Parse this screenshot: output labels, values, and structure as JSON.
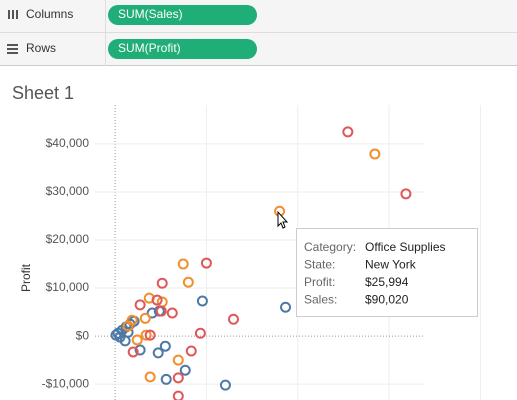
{
  "shelves": {
    "columns": {
      "label": "Columns",
      "pill": "SUM(Sales)"
    },
    "rows": {
      "label": "Rows",
      "pill": "SUM(Profit)"
    }
  },
  "chart_data": {
    "type": "scatter",
    "title": "Sheet 1",
    "y_label": "Profit",
    "xlim": [
      -11000,
      220000
    ],
    "xticks": [
      0,
      50000,
      100000,
      150000,
      200000
    ],
    "ylim": [
      -13300,
      48100
    ],
    "yticks": [
      {
        "value": -10000,
        "label": "-$10,000"
      },
      {
        "value": 0,
        "label": "$0"
      },
      {
        "value": 10000,
        "label": "$10,000"
      },
      {
        "value": 20000,
        "label": "$20,000"
      },
      {
        "value": 30000,
        "label": "$30,000"
      },
      {
        "value": 40000,
        "label": "$40,000"
      }
    ],
    "grid": true,
    "series": [
      {
        "color": "#4e79a7",
        "x": [
          47800,
          93300,
          24200,
          20300,
          27500,
          23600,
          13700,
          38400,
          28000,
          60400,
          5500,
          500,
          1600,
          3800,
          6000,
          8200,
          10400,
          2700,
          7100
        ],
        "values": [
          7300,
          6000,
          5200,
          4800,
          -2100,
          -3500,
          -2900,
          -7100,
          -9000,
          -10200,
          -1000,
          200,
          600,
          1200,
          1900,
          2500,
          3100,
          -200,
          800
        ]
      },
      {
        "color": "#f28e2b",
        "x": [
          142200,
          90020,
          37300,
          40100,
          18700,
          25800,
          16500,
          9300,
          7100,
          12100,
          34600,
          19200,
          17000
        ],
        "values": [
          37900,
          25994,
          15000,
          11200,
          7900,
          7100,
          3700,
          3300,
          2100,
          -800,
          -5000,
          -8500,
          200
        ]
      },
      {
        "color": "#e15759",
        "x": [
          127400,
          159200,
          50000,
          64800,
          46700,
          41700,
          34600,
          25300,
          23000,
          25800,
          31300,
          13700,
          19200,
          9900,
          34600
        ],
        "values": [
          42500,
          29600,
          15200,
          3500,
          600,
          -3100,
          -8700,
          5200,
          7500,
          11000,
          4800,
          6500,
          200,
          -3300,
          -12500
        ]
      }
    ]
  },
  "tooltip": {
    "rows": [
      [
        "Category:",
        "Office Supplies"
      ],
      [
        "State:",
        "New York"
      ],
      [
        "Profit:",
        "$25,994"
      ],
      [
        "Sales:",
        "$90,020"
      ]
    ]
  }
}
